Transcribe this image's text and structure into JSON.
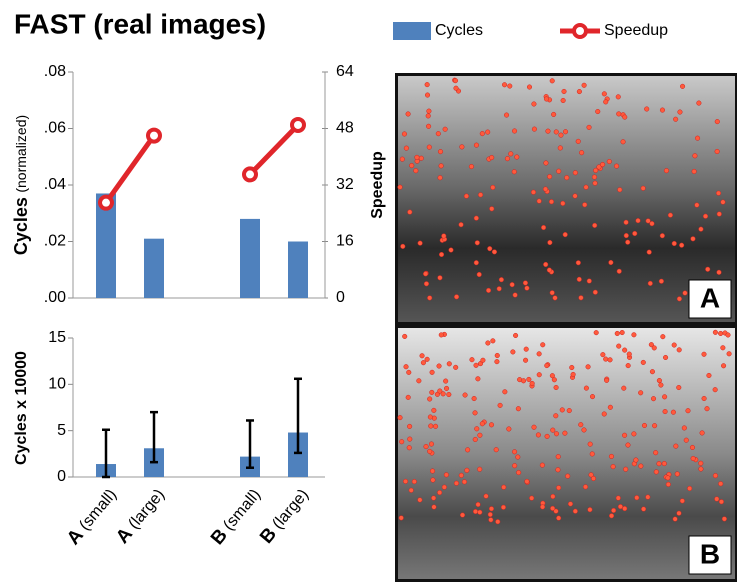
{
  "title": "FAST (real images)",
  "chart_data": [
    {
      "type": "bar-line",
      "ylabel": {
        "main": "Cycles",
        "note": "(normalized)"
      },
      "y2label": "Speedup",
      "categories": [
        "A (small)",
        "A (large)",
        null,
        "B (small)",
        "B (large)"
      ],
      "series": [
        {
          "name": "Cycles",
          "type": "bar",
          "color": "#4f81bd",
          "values": [
            0.037,
            0.021,
            null,
            0.028,
            0.02
          ]
        },
        {
          "name": "Speedup",
          "type": "line",
          "axis": "y2",
          "color": "#e0262b",
          "values": [
            27,
            46,
            null,
            35,
            49
          ]
        }
      ],
      "ylim": [
        0,
        0.08
      ],
      "yticks": [
        {
          "value": 0,
          "label": ".00"
        },
        {
          "value": 0.02,
          "label": ".02"
        },
        {
          "value": 0.04,
          "label": ".04"
        },
        {
          "value": 0.06,
          "label": ".06"
        },
        {
          "value": 0.08,
          "label": ".08"
        }
      ],
      "y2lim": [
        0,
        64
      ],
      "y2ticks": [
        0,
        16,
        32,
        48,
        64
      ]
    },
    {
      "type": "bar-error",
      "ylabel": "Cycles x 10000",
      "categories": [
        "A (small)",
        "A (large)",
        null,
        "B (small)",
        "B (large)"
      ],
      "color": "#4f81bd",
      "values": [
        1.4,
        3.1,
        null,
        2.2,
        4.8
      ],
      "err_low": [
        0,
        1.6,
        null,
        1.0,
        2.6
      ],
      "err_high": [
        5.1,
        7.0,
        null,
        6.1,
        10.6
      ],
      "ylim": [
        0,
        15
      ],
      "yticks": [
        0,
        5,
        10,
        15
      ]
    }
  ],
  "images": [
    {
      "label": "A"
    },
    {
      "label": "B"
    }
  ]
}
